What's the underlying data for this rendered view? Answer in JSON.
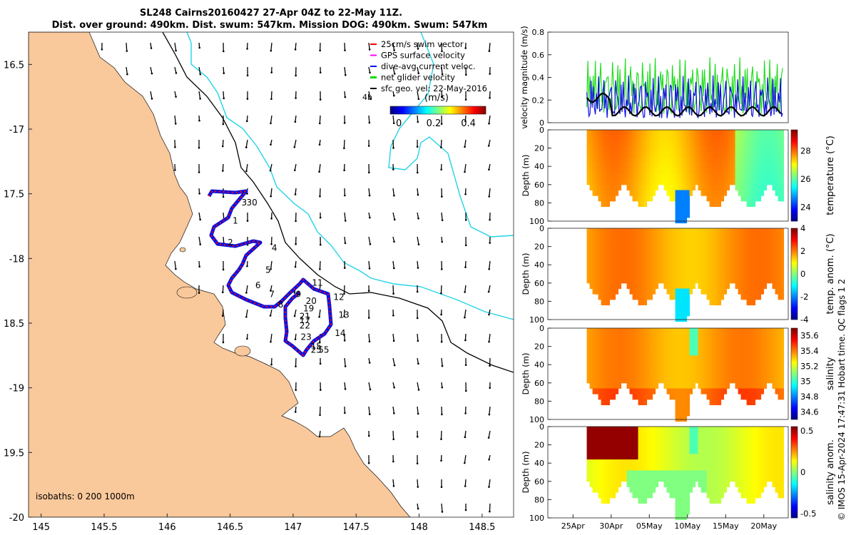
{
  "title_line1": "SL248 Cairns20160427 27-Apr 04Z to 22-May 11Z.",
  "title_line2": "Dist. over ground: 490km. Dist. swum: 547km. Mission DOG: 490km. Swum: 547km",
  "map": {
    "lon_ticks": [
      "145",
      "145.5",
      "146",
      "146.5",
      "147",
      "147.5",
      "148",
      "148.5"
    ],
    "lon_values": [
      145,
      145.5,
      146,
      146.5,
      147,
      147.5,
      148,
      148.5
    ],
    "lat_ticks": [
      "16.5",
      "-17",
      "17.5",
      "-18",
      "18.5",
      "-19",
      "19.5",
      "-20"
    ],
    "lat_values": [
      -16.5,
      -17,
      -17.5,
      -18,
      -18.5,
      -19,
      -19.5,
      -20
    ],
    "lon_range": [
      144.9,
      148.75
    ],
    "lat_range": [
      -16.25,
      -20.0
    ],
    "isobaths_label": "isobaths: 0   200  1000m",
    "legend": [
      {
        "label": "25cm/s swim vector",
        "color": "#ff0000"
      },
      {
        "label": "GPS surface velocity",
        "color": "#ff00ff"
      },
      {
        "label": "dive-avg current veloc.",
        "color": "#0000ff"
      },
      {
        "label": "net glider velocity",
        "color": "#00dd00"
      },
      {
        "label": "sfc geo. vel: 22-May-2016",
        "color": "#000000"
      }
    ],
    "legend_4h": "4h",
    "colorbar_label": "(m/s)",
    "colorbar_ticks": [
      "0",
      "0.2",
      "0.4"
    ],
    "colorbar_values": [
      0,
      0.2,
      0.4
    ],
    "colorbar_range": [
      -0.05,
      0.5
    ],
    "track_day_labels": [
      {
        "t": "1",
        "lon": 146.52,
        "lat": -17.73
      },
      {
        "t": "2",
        "lon": 146.48,
        "lat": -17.9
      },
      {
        "t": "4",
        "lon": 146.83,
        "lat": -17.94
      },
      {
        "t": "5",
        "lon": 146.78,
        "lat": -18.11
      },
      {
        "t": "6",
        "lon": 146.7,
        "lat": -18.23
      },
      {
        "t": "7",
        "lon": 146.81,
        "lat": -18.3
      },
      {
        "t": "8",
        "lon": 146.88,
        "lat": -18.38
      },
      {
        "t": "11",
        "lon": 147.15,
        "lat": -18.21
      },
      {
        "t": "12",
        "lon": 147.32,
        "lat": -18.32
      },
      {
        "t": "13",
        "lon": 147.36,
        "lat": -18.46
      },
      {
        "t": "14",
        "lon": 147.33,
        "lat": -18.6
      },
      {
        "t": "20",
        "lon": 147.1,
        "lat": -18.35
      },
      {
        "t": "19",
        "lon": 147.08,
        "lat": -18.41
      },
      {
        "t": "21",
        "lon": 147.05,
        "lat": -18.47
      },
      {
        "t": "17",
        "lon": 147.05,
        "lat": -18.5
      },
      {
        "t": "22",
        "lon": 147.05,
        "lat": -18.54
      },
      {
        "t": "23",
        "lon": 147.06,
        "lat": -18.63
      },
      {
        "t": "15",
        "lon": 147.14,
        "lat": -18.7
      },
      {
        "t": "25",
        "lon": 147.14,
        "lat": -18.73
      },
      {
        "t": "55",
        "lon": 147.2,
        "lat": -18.73
      },
      {
        "t": "9",
        "lon": 147.02,
        "lat": -18.3
      },
      {
        "t": "30",
        "lon": 146.63,
        "lat": -17.59
      },
      {
        "t": "3",
        "lon": 146.59,
        "lat": -17.59
      }
    ]
  },
  "velocity_panel": {
    "ylabel": "velocity magnitude (m/s)",
    "yticks": [
      "0",
      "0.2",
      "0.4",
      "0.6",
      "0.8"
    ],
    "yvalues": [
      0,
      0.2,
      0.4,
      0.6,
      0.8
    ],
    "ylim": [
      0,
      0.8
    ]
  },
  "time_axis": {
    "ticks": [
      "25Apr",
      "30Apr",
      "05May",
      "10May",
      "15May",
      "20May"
    ],
    "tick_days": [
      0,
      5,
      10,
      15,
      20,
      25
    ],
    "start_day": -3.3,
    "end_day": 28.2,
    "data_start": 1.8,
    "data_end": 27.5
  },
  "profile_panels": [
    {
      "ylabel": "Depth (m)",
      "cbar_label": "temperature (°C)",
      "cbar_ticks": [
        "24",
        "26",
        "28"
      ],
      "cbar_values": [
        24,
        26,
        28
      ],
      "cbar_range": [
        23,
        29.5
      ]
    },
    {
      "ylabel": "Depth (m)",
      "cbar_label": "temp. anom. (°C)",
      "cbar_ticks": [
        "-4",
        "-2",
        "0",
        "2",
        "4"
      ],
      "cbar_values": [
        -4,
        -2,
        0,
        2,
        4
      ],
      "cbar_range": [
        -4,
        4
      ]
    },
    {
      "ylabel": "Depth (m)",
      "cbar_label": "salinity",
      "cbar_ticks": [
        "34.6",
        "34.8",
        "35",
        "35.2",
        "35.4",
        "35.6"
      ],
      "cbar_values": [
        34.6,
        34.8,
        35,
        35.2,
        35.4,
        35.6
      ],
      "cbar_range": [
        34.5,
        35.7
      ]
    },
    {
      "ylabel": "Depth (m)",
      "cbar_label": "salinity anom.",
      "cbar_ticks": [
        "-0.5",
        "0",
        "0.5"
      ],
      "cbar_values": [
        -0.5,
        0,
        0.5
      ],
      "cbar_range": [
        -0.55,
        0.55
      ]
    }
  ],
  "depth_ticks": [
    "0",
    "20",
    "40",
    "60",
    "80",
    "100"
  ],
  "depth_values": [
    0,
    20,
    40,
    60,
    80,
    100
  ],
  "side_note": "© IMOS 15-Apr-2024 17:47:31 Hobart time. QC flags 1  2",
  "colors": {
    "land": "#f9c89b",
    "track": "#1010e0",
    "swim": "#ff0000",
    "net": "#22dd22",
    "isobath200": "#000000",
    "isobath1000": "#22d3e8"
  }
}
